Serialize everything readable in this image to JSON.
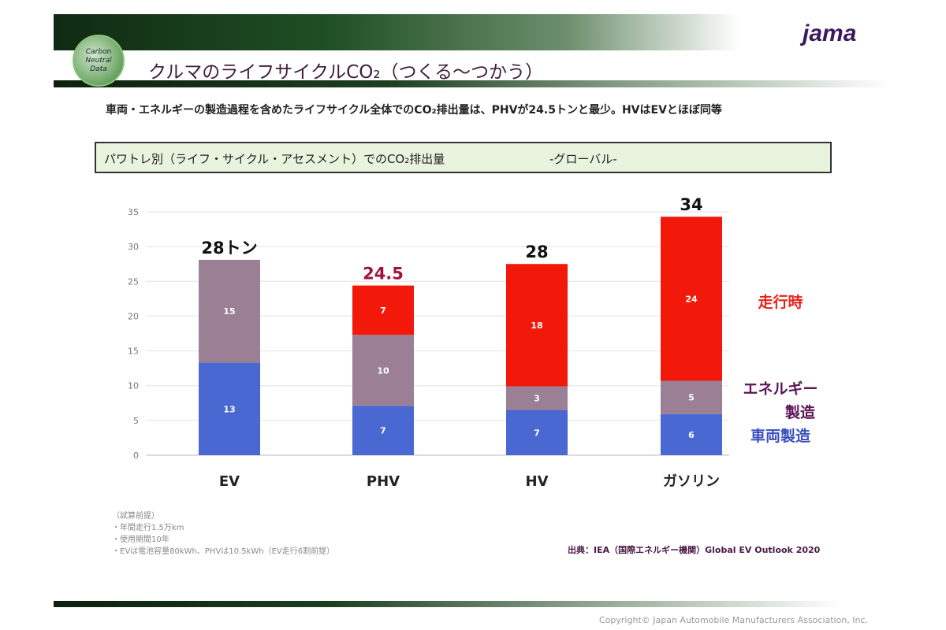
{
  "header": {
    "logo_text": "Carbon Neutral Data",
    "title": "クルマのライフサイクルCO₂（つくる〜つかう）",
    "brand": "jama"
  },
  "lead": "車両・エネルギーの製造過程を含めたライフサイクル全体でのCO₂排出量は、PHVが24.5トンと最少。HVはEVとほぼ同等",
  "subtitle": {
    "main": "パワトレ別（ライフ・サイクル・アセスメント）でのCO₂排出量",
    "region": "-グローバル-"
  },
  "chart_data": {
    "type": "bar",
    "stacked": true,
    "categories": [
      "EV",
      "PHV",
      "HV",
      "ガソリン"
    ],
    "ylim": [
      0,
      35
    ],
    "yticks": [
      0,
      5,
      10,
      15,
      20,
      25,
      30,
      35
    ],
    "grid": true,
    "series": [
      {
        "name": "車両製造",
        "color": "#4a68d2",
        "values": [
          13.3,
          7.1,
          6.5,
          5.9
        ],
        "labels": [
          "13",
          "7",
          "7",
          "6"
        ]
      },
      {
        "name": "エネルギー製造",
        "color": "#9a7f95",
        "values": [
          14.8,
          10.2,
          3.4,
          4.8
        ],
        "labels": [
          "15",
          "10",
          "3",
          "5"
        ]
      },
      {
        "name": "走行時",
        "color": "#f2190b",
        "values": [
          0,
          7.1,
          17.6,
          23.6
        ],
        "labels": [
          "",
          "7",
          "18",
          "24"
        ]
      }
    ],
    "totals": [
      "28トン",
      "24.5",
      "28",
      "34"
    ],
    "total_colors": [
      "#111111",
      "#a3123c",
      "#111111",
      "#111111"
    ],
    "legend": [
      {
        "text": "走行時",
        "color": "#e8241a"
      },
      {
        "text": "エネルギー",
        "color": "#5c1558"
      },
      {
        "text": "製造",
        "color": "#5c1558"
      },
      {
        "text": "車両製造",
        "color": "#3a4fc0"
      }
    ],
    "legend_position": "right"
  },
  "notes": {
    "heading": "（試算前提）",
    "items": [
      "・年間走行1.5万km",
      "・使用期間10年",
      "・EVは電池容量80kWh、PHVは10.5kWh（EV走行6割前提）"
    ]
  },
  "source": "出典：IEA（国際エネルギー機関）Global EV Outlook 2020",
  "copyright": "Copyright© Japan Automobile Manufacturers Association, Inc."
}
